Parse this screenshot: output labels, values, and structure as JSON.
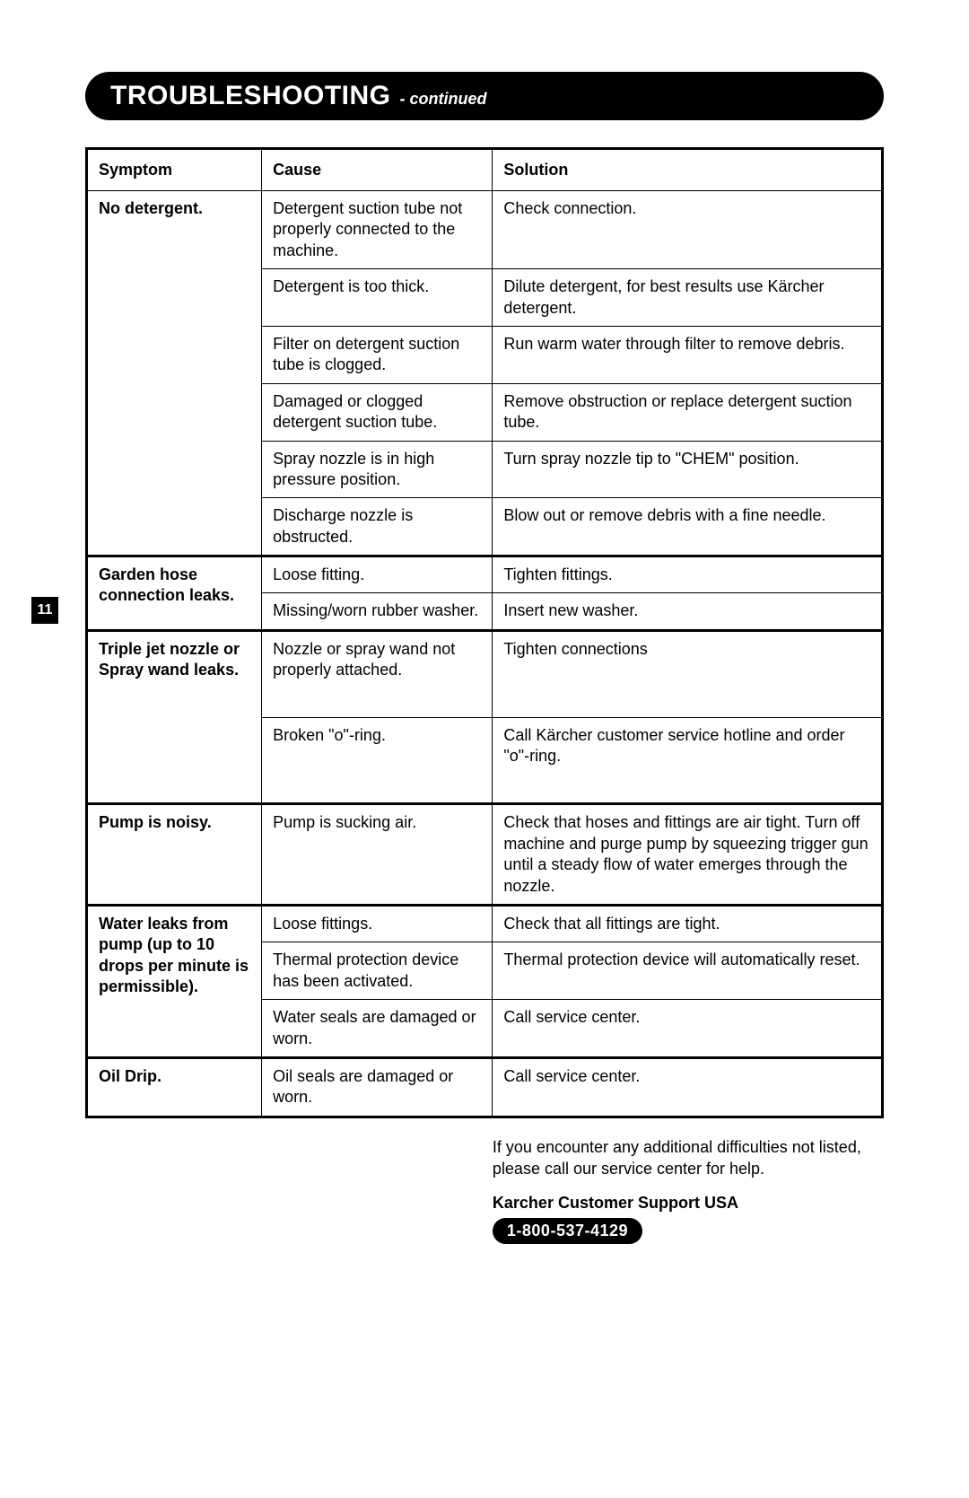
{
  "page_number": "11",
  "header": {
    "main": "TROUBLESHOOTING",
    "sub": "- continued"
  },
  "table": {
    "columns": [
      "Symptom",
      "Cause",
      "Solution"
    ],
    "groups": [
      {
        "symptom": "No detergent.",
        "rows": [
          {
            "cause": "Detergent suction tube not properly connected to the machine.",
            "solution": "Check connection."
          },
          {
            "cause": "Detergent is too thick.",
            "solution": "Dilute detergent, for best results use Kärcher detergent."
          },
          {
            "cause": "Filter on detergent suction tube is clogged.",
            "solution": "Run warm water through filter to remove debris."
          },
          {
            "cause": "Damaged or clogged detergent suction tube.",
            "solution": "Remove obstruction or replace detergent suction tube."
          },
          {
            "cause": "Spray nozzle is in high pressure position.",
            "solution": "Turn spray nozzle tip to \"CHEM\" position."
          },
          {
            "cause": "Discharge nozzle is obstructed.",
            "solution": "Blow out or remove debris with a fine needle."
          }
        ]
      },
      {
        "symptom": "Garden hose connection leaks.",
        "rows": [
          {
            "cause": "Loose fitting.",
            "solution": "Tighten fittings."
          },
          {
            "cause": "Missing/worn rubber washer.",
            "solution": "Insert new washer."
          }
        ]
      },
      {
        "symptom": "Triple jet nozzle or Spray wand leaks.",
        "rows": [
          {
            "cause": "Nozzle or spray wand not properly attached.",
            "solution": "Tighten connections",
            "tall": true
          },
          {
            "cause": "Broken \"o\"-ring.",
            "solution": "Call Kärcher customer service hotline and order \"o\"-ring.",
            "tall": true
          }
        ]
      },
      {
        "symptom": "Pump is noisy.",
        "rows": [
          {
            "cause": "Pump is sucking air.",
            "solution": "Check that hoses and fittings are air tight. Turn off machine and purge pump by squeezing trigger gun until a steady flow of water emerges through the nozzle."
          }
        ]
      },
      {
        "symptom": "Water leaks from pump (up to 10 drops per minute is permissible).",
        "rows": [
          {
            "cause": "Loose fittings.",
            "solution": "Check that all fittings are tight."
          },
          {
            "cause": "Thermal protection device has been activated.",
            "solution": "Thermal protection device will automatically reset."
          },
          {
            "cause": "Water seals are damaged or worn.",
            "solution": "Call service center."
          }
        ]
      },
      {
        "symptom": "Oil Drip.",
        "rows": [
          {
            "cause": "Oil seals are damaged or worn.",
            "solution": "Call service center."
          }
        ]
      }
    ]
  },
  "footer": {
    "note": "If you encounter any additional difficulties not listed, please call our service center for help.",
    "support_title": "Karcher Customer Support USA",
    "phone": "1-800-537-4129"
  }
}
